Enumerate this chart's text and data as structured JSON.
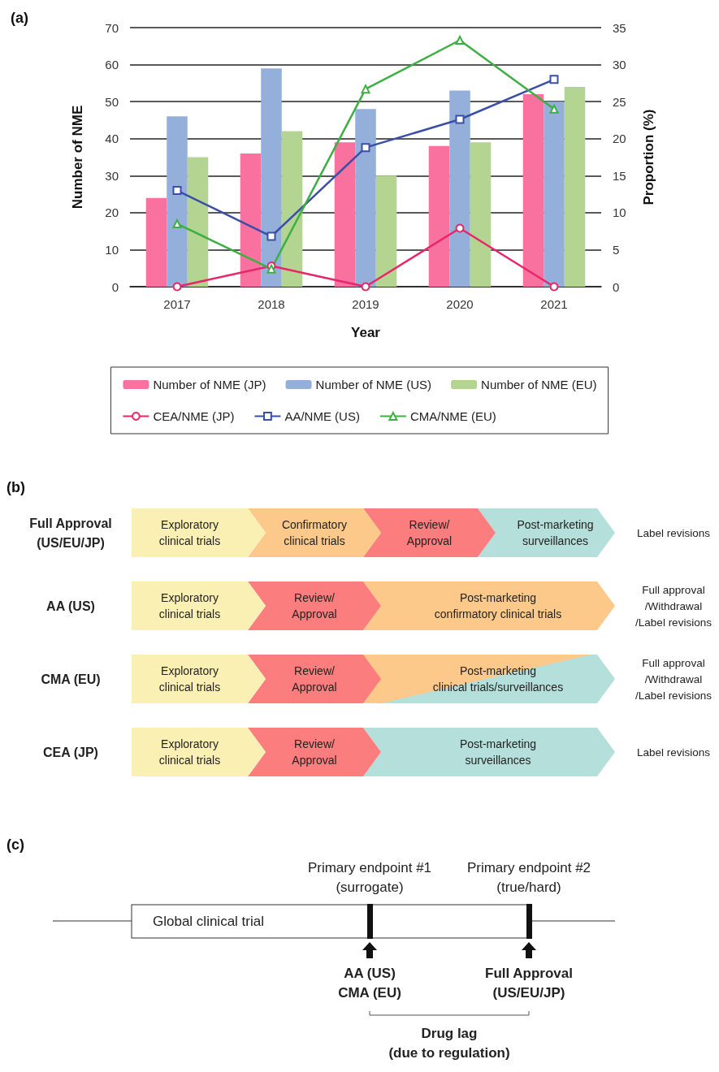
{
  "chart_data": [
    {
      "type": "bar",
      "title": "(a)",
      "xlabel": "Year",
      "ylabel": "Number of NME",
      "y2label": "Proportion (%)",
      "categories": [
        "2017",
        "2018",
        "2019",
        "2020",
        "2021"
      ],
      "series": [
        {
          "name": "Number of NME (JP)",
          "type": "bar",
          "color": "#f9719f",
          "values": [
            24,
            36,
            39,
            38,
            52
          ]
        },
        {
          "name": "Number of NME (US)",
          "type": "bar",
          "color": "#95afdb",
          "values": [
            46,
            59,
            48,
            53,
            50
          ]
        },
        {
          "name": "Number of NME (EU)",
          "type": "bar",
          "color": "#b4d592",
          "values": [
            35,
            42,
            30,
            39,
            54
          ]
        },
        {
          "name": "CEA/NME (JP)",
          "type": "line",
          "axis": "y2",
          "marker": "circle",
          "color": "#e8266a",
          "values": [
            0,
            2.8,
            0,
            7.9,
            0
          ]
        },
        {
          "name": "AA/NME (US)",
          "type": "line",
          "axis": "y2",
          "marker": "square",
          "color": "#3a4fa8",
          "values": [
            13.0,
            6.8,
            18.8,
            22.6,
            28.0
          ]
        },
        {
          "name": "CMA/NME (EU)",
          "type": "line",
          "axis": "y2",
          "marker": "triangle",
          "color": "#3cb043",
          "values": [
            8.5,
            2.4,
            26.7,
            33.3,
            24.0
          ]
        }
      ],
      "ylim": [
        0,
        70
      ],
      "yticks": [
        0,
        10,
        20,
        30,
        40,
        50,
        60,
        70
      ],
      "y2lim": [
        0,
        35
      ],
      "y2ticks": [
        0,
        5,
        10,
        15,
        20,
        25,
        30,
        35
      ],
      "grid": "y",
      "legend": "bottom"
    },
    {
      "type": "other",
      "title": "(b)",
      "annotations": [
        "Full Approval\n(US/EU/JP)",
        "Exploratory\nclinical trials",
        "Confirmatory\nclinical trials",
        "Review/\nApproval",
        "Post-marketing\nsurveillances",
        "Label revisions",
        "AA (US)",
        "Exploratory\nclinical trials",
        "Review/\nApproval",
        "Post-marketing\nconfirmatory clinical trials",
        "Full approval\n/Withdrawal\n/Label revisions",
        "CMA (EU)",
        "Exploratory\nclinical trials",
        "Review/\nApproval",
        "Post-marketing\nclinical trials/surveillances",
        "Full approval\n/Withdrawal\n/Label revisions",
        "CEA (JP)",
        "Exploratory\nclinical trials",
        "Review/\nApproval",
        "Post-marketing\nsurveillances",
        "Label revisions"
      ]
    },
    {
      "type": "other",
      "title": "(c)",
      "annotations": [
        "Primary endpoint #1\n(surrogate)",
        "Primary endpoint #2\n(true/hard)",
        "Global clinical trial",
        "AA (US)\nCMA (EU)",
        "Full Approval\n(US/EU/JP)",
        "Drug lag\n(due to regulation)"
      ]
    }
  ]
}
